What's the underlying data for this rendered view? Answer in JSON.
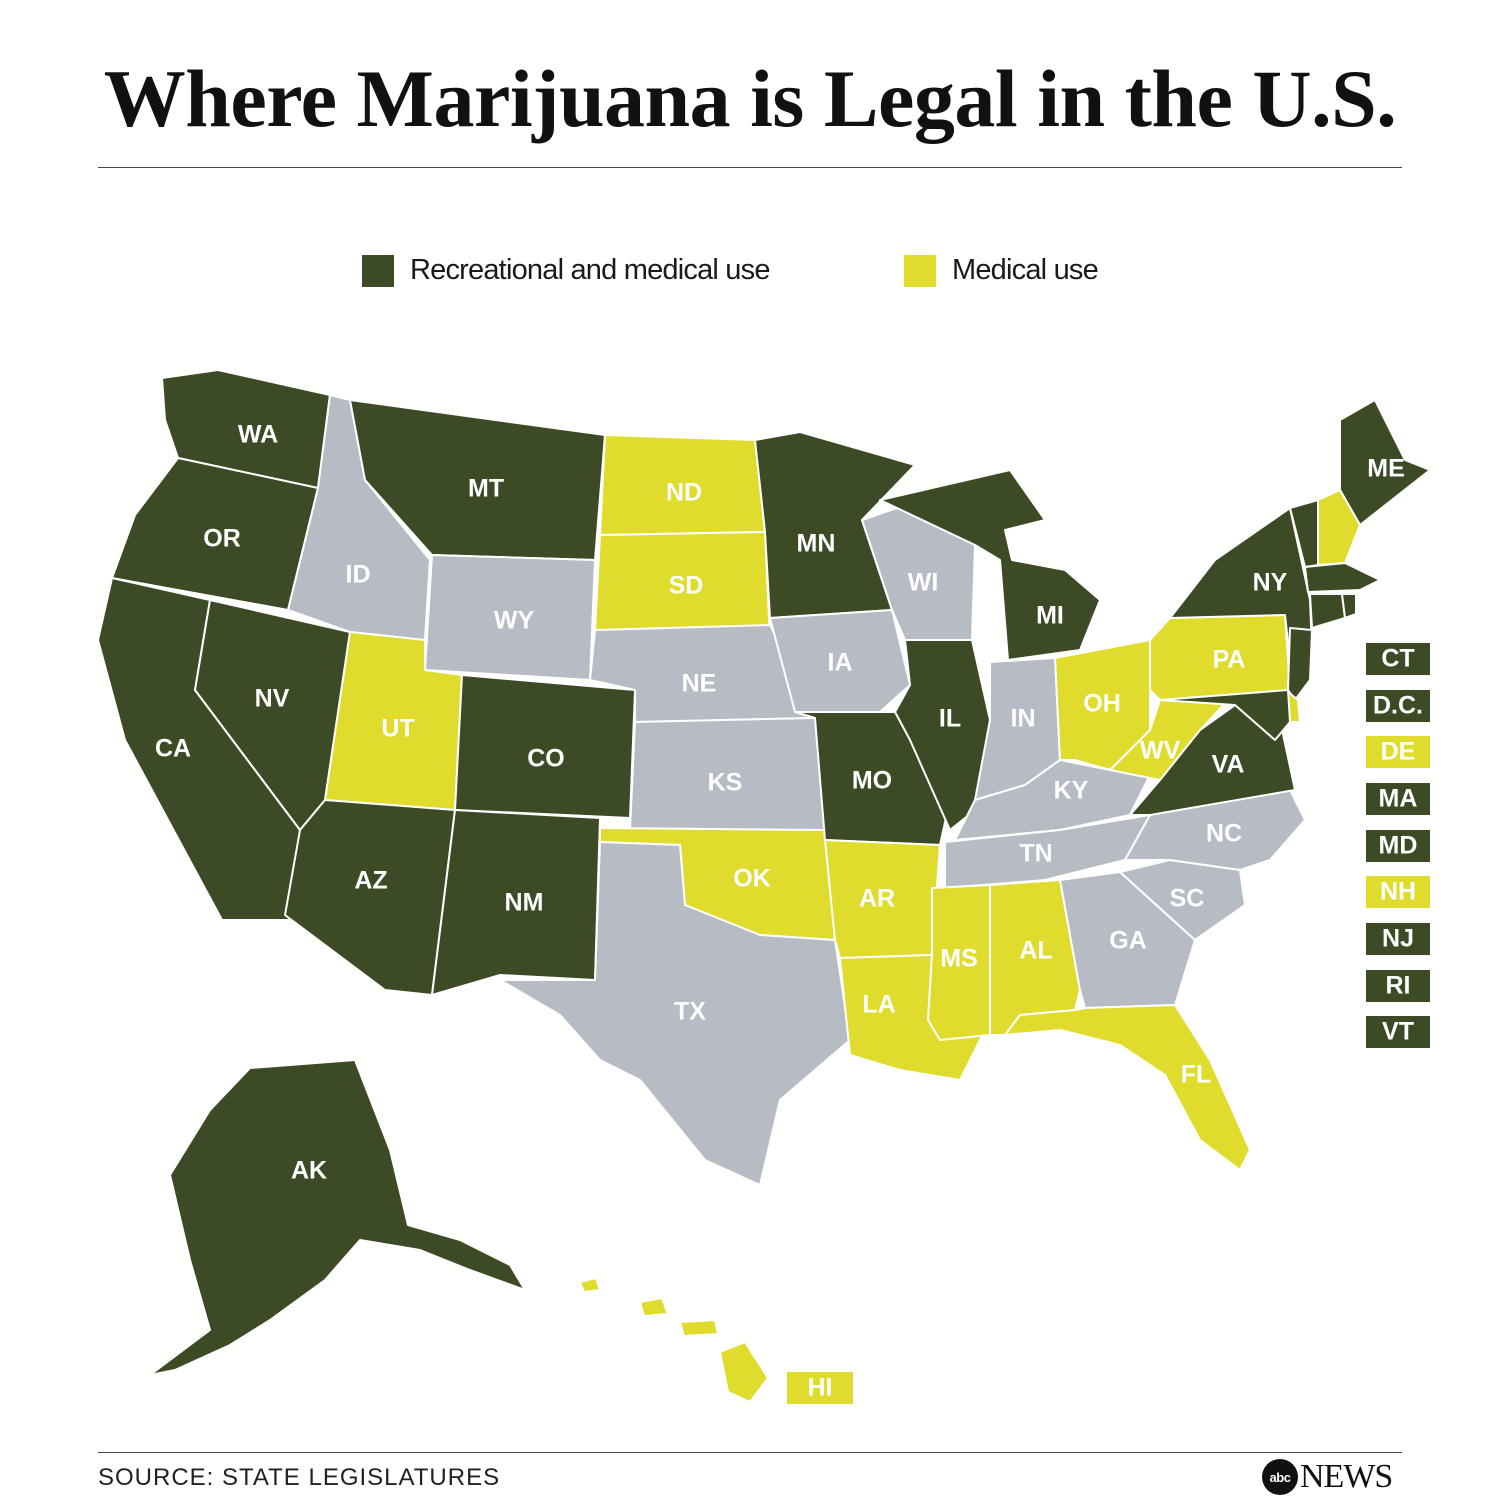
{
  "title": "Where Marijuana is Legal in the U.S.",
  "legend": [
    {
      "label": "Recreational and medical use",
      "color": "#3d4a26"
    },
    {
      "label": "Medical use",
      "color": "#e0dc2e"
    }
  ],
  "colors": {
    "recreational": "#3d4a26",
    "medical": "#e0dc2e",
    "none": "#b6bbc4"
  },
  "states": [
    {
      "code": "WA",
      "status": "recreational"
    },
    {
      "code": "OR",
      "status": "recreational"
    },
    {
      "code": "CA",
      "status": "recreational"
    },
    {
      "code": "NV",
      "status": "recreational"
    },
    {
      "code": "ID",
      "status": "none"
    },
    {
      "code": "MT",
      "status": "recreational"
    },
    {
      "code": "WY",
      "status": "none"
    },
    {
      "code": "UT",
      "status": "medical"
    },
    {
      "code": "CO",
      "status": "recreational"
    },
    {
      "code": "AZ",
      "status": "recreational"
    },
    {
      "code": "NM",
      "status": "recreational"
    },
    {
      "code": "ND",
      "status": "medical"
    },
    {
      "code": "SD",
      "status": "medical"
    },
    {
      "code": "NE",
      "status": "none"
    },
    {
      "code": "KS",
      "status": "none"
    },
    {
      "code": "OK",
      "status": "medical"
    },
    {
      "code": "TX",
      "status": "none"
    },
    {
      "code": "MN",
      "status": "recreational"
    },
    {
      "code": "IA",
      "status": "none"
    },
    {
      "code": "MO",
      "status": "recreational"
    },
    {
      "code": "AR",
      "status": "medical"
    },
    {
      "code": "LA",
      "status": "medical"
    },
    {
      "code": "WI",
      "status": "none"
    },
    {
      "code": "IL",
      "status": "recreational"
    },
    {
      "code": "MI",
      "status": "recreational"
    },
    {
      "code": "IN",
      "status": "none"
    },
    {
      "code": "OH",
      "status": "medical"
    },
    {
      "code": "KY",
      "status": "none"
    },
    {
      "code": "TN",
      "status": "none"
    },
    {
      "code": "MS",
      "status": "medical"
    },
    {
      "code": "AL",
      "status": "medical"
    },
    {
      "code": "GA",
      "status": "none"
    },
    {
      "code": "FL",
      "status": "medical"
    },
    {
      "code": "SC",
      "status": "none"
    },
    {
      "code": "NC",
      "status": "none"
    },
    {
      "code": "VA",
      "status": "recreational"
    },
    {
      "code": "WV",
      "status": "medical"
    },
    {
      "code": "PA",
      "status": "medical"
    },
    {
      "code": "NY",
      "status": "recreational"
    },
    {
      "code": "ME",
      "status": "recreational"
    },
    {
      "code": "AK",
      "status": "recreational"
    },
    {
      "code": "HI",
      "status": "medical"
    }
  ],
  "small_states": [
    {
      "code": "CT",
      "status": "recreational"
    },
    {
      "code": "D.C.",
      "status": "recreational"
    },
    {
      "code": "DE",
      "status": "medical"
    },
    {
      "code": "MA",
      "status": "recreational"
    },
    {
      "code": "MD",
      "status": "recreational"
    },
    {
      "code": "NH",
      "status": "medical"
    },
    {
      "code": "NJ",
      "status": "recreational"
    },
    {
      "code": "RI",
      "status": "recreational"
    },
    {
      "code": "VT",
      "status": "recreational"
    }
  ],
  "source": "SOURCE: STATE LEGISLATURES",
  "logo": {
    "mark": "abc",
    "word": "NEWS"
  }
}
